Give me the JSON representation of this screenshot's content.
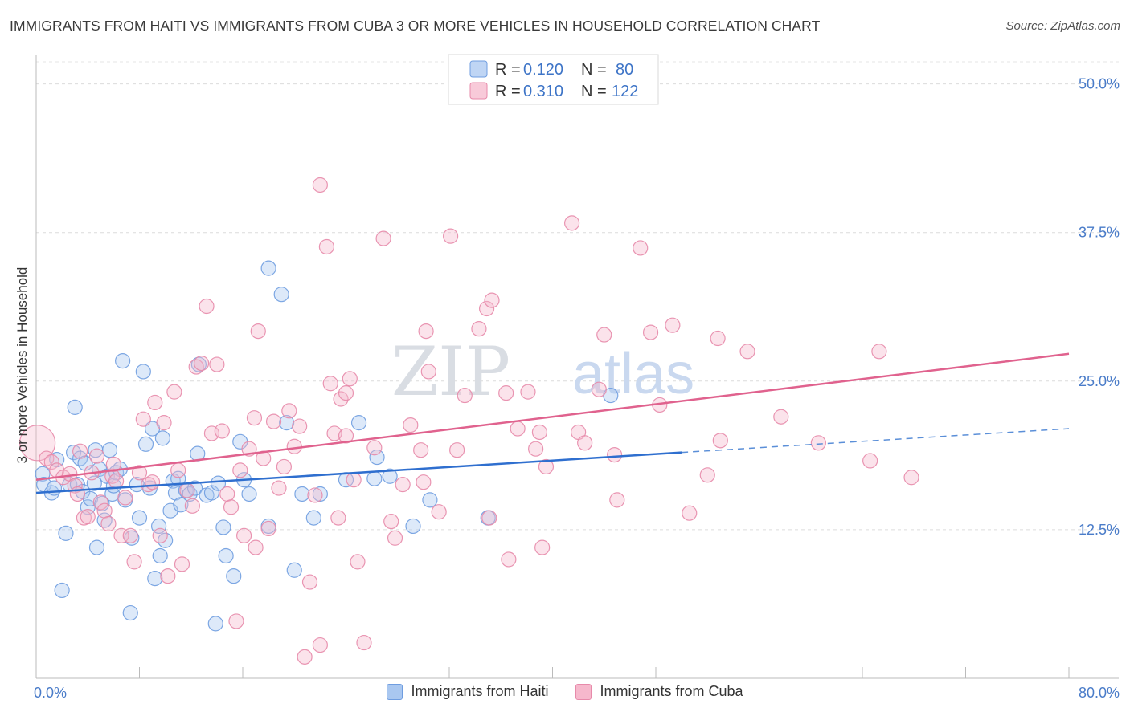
{
  "title": "IMMIGRANTS FROM HAITI VS IMMIGRANTS FROM CUBA 3 OR MORE VEHICLES IN HOUSEHOLD CORRELATION CHART",
  "source": "Source: ZipAtlas.com",
  "watermark": {
    "zip": "ZIP",
    "atlas": "atlas"
  },
  "chart_data": {
    "type": "scatter",
    "title": "IMMIGRANTS FROM HAITI VS IMMIGRANTS FROM CUBA 3 OR MORE VEHICLES IN HOUSEHOLD CORRELATION CHART",
    "xlabel": "",
    "ylabel": "3 or more Vehicles in Household",
    "xlim": [
      0,
      80
    ],
    "ylim": [
      0,
      52
    ],
    "x_tick_labels": [
      "0.0%",
      "80.0%"
    ],
    "y_ticks": [
      12.5,
      25.0,
      37.5,
      50.0
    ],
    "y_tick_labels": [
      "12.5%",
      "25.0%",
      "37.5%",
      "50.0%"
    ],
    "legend": [
      {
        "r_label": "R =",
        "r": "0.120",
        "n_label": "N =",
        "n": "80"
      },
      {
        "r_label": "R =",
        "r": "0.310",
        "n_label": "N =",
        "n": "122"
      }
    ],
    "series": [
      {
        "name": "Immigrants from Haiti",
        "color": "#6f9de0",
        "fill": "#a9c7f0",
        "trend": {
          "x0": 0,
          "y0": 15.6,
          "x1": 50,
          "y1": 19.0,
          "dash_x1": 80,
          "dash_y1": 21.0
        },
        "points": [
          [
            0.5,
            17.2
          ],
          [
            0.6,
            16.3
          ],
          [
            1.2,
            15.6
          ],
          [
            1.4,
            16.0
          ],
          [
            1.6,
            18.4
          ],
          [
            2.0,
            7.4
          ],
          [
            2.3,
            12.2
          ],
          [
            2.6,
            16.3
          ],
          [
            2.9,
            19.0
          ],
          [
            3.0,
            22.8
          ],
          [
            3.2,
            16.3
          ],
          [
            3.4,
            18.5
          ],
          [
            3.6,
            15.7
          ],
          [
            3.8,
            18.1
          ],
          [
            4.0,
            14.4
          ],
          [
            4.2,
            15.1
          ],
          [
            4.5,
            16.4
          ],
          [
            4.6,
            19.2
          ],
          [
            4.7,
            11.0
          ],
          [
            4.9,
            17.6
          ],
          [
            5.1,
            14.7
          ],
          [
            5.3,
            13.3
          ],
          [
            5.5,
            17.0
          ],
          [
            5.7,
            19.2
          ],
          [
            5.9,
            15.5
          ],
          [
            6.0,
            16.2
          ],
          [
            6.2,
            17.3
          ],
          [
            6.5,
            17.6
          ],
          [
            6.7,
            26.7
          ],
          [
            6.9,
            15.0
          ],
          [
            7.3,
            5.5
          ],
          [
            7.4,
            11.8
          ],
          [
            7.8,
            16.3
          ],
          [
            8.0,
            13.5
          ],
          [
            8.3,
            25.8
          ],
          [
            8.5,
            19.7
          ],
          [
            8.8,
            16.0
          ],
          [
            9.0,
            21.0
          ],
          [
            9.2,
            8.4
          ],
          [
            9.5,
            12.8
          ],
          [
            9.6,
            10.3
          ],
          [
            9.8,
            20.2
          ],
          [
            10.0,
            11.6
          ],
          [
            10.4,
            14.1
          ],
          [
            10.6,
            16.6
          ],
          [
            10.8,
            15.6
          ],
          [
            11.0,
            16.8
          ],
          [
            11.2,
            14.6
          ],
          [
            11.6,
            15.8
          ],
          [
            11.9,
            15.5
          ],
          [
            12.3,
            16.0
          ],
          [
            12.5,
            18.9
          ],
          [
            12.6,
            26.4
          ],
          [
            13.2,
            15.4
          ],
          [
            13.6,
            15.6
          ],
          [
            13.9,
            4.6
          ],
          [
            14.1,
            16.4
          ],
          [
            14.5,
            12.7
          ],
          [
            14.7,
            10.3
          ],
          [
            15.3,
            8.6
          ],
          [
            15.8,
            19.9
          ],
          [
            16.1,
            16.7
          ],
          [
            16.5,
            15.5
          ],
          [
            18.0,
            34.5
          ],
          [
            18.0,
            12.8
          ],
          [
            19.0,
            32.3
          ],
          [
            19.4,
            21.5
          ],
          [
            20.0,
            9.1
          ],
          [
            20.6,
            15.5
          ],
          [
            21.5,
            13.5
          ],
          [
            22.0,
            15.5
          ],
          [
            24.0,
            16.7
          ],
          [
            25.0,
            21.5
          ],
          [
            26.2,
            16.8
          ],
          [
            26.4,
            18.6
          ],
          [
            27.4,
            17.0
          ],
          [
            29.2,
            12.8
          ],
          [
            35.0,
            13.5
          ],
          [
            44.5,
            23.8
          ],
          [
            30.5,
            15.0
          ]
        ]
      },
      {
        "name": "Immigrants from Cuba",
        "color": "#e78aaa",
        "fill": "#f6b8cc",
        "trend": {
          "x0": 0,
          "y0": 16.7,
          "x1": 80,
          "y1": 27.3
        },
        "points": [
          [
            0.1,
            19.8
          ],
          [
            0.8,
            18.5
          ],
          [
            1.2,
            18.2
          ],
          [
            1.6,
            17.5
          ],
          [
            2.1,
            16.9
          ],
          [
            2.6,
            17.2
          ],
          [
            3.0,
            16.2
          ],
          [
            3.4,
            19.1
          ],
          [
            3.7,
            13.5
          ],
          [
            4.0,
            13.6
          ],
          [
            4.3,
            17.3
          ],
          [
            4.7,
            18.7
          ],
          [
            5.0,
            14.8
          ],
          [
            5.3,
            14.1
          ],
          [
            5.6,
            13.0
          ],
          [
            5.9,
            17.0
          ],
          [
            6.2,
            16.6
          ],
          [
            6.6,
            12.0
          ],
          [
            6.9,
            15.2
          ],
          [
            7.3,
            12.0
          ],
          [
            7.6,
            9.8
          ],
          [
            8.0,
            17.3
          ],
          [
            8.3,
            21.8
          ],
          [
            8.7,
            16.3
          ],
          [
            9.2,
            23.2
          ],
          [
            9.6,
            12.0
          ],
          [
            9.9,
            21.5
          ],
          [
            10.2,
            8.6
          ],
          [
            10.7,
            24.1
          ],
          [
            11.0,
            17.5
          ],
          [
            11.3,
            9.6
          ],
          [
            11.7,
            15.8
          ],
          [
            12.1,
            14.5
          ],
          [
            12.4,
            26.2
          ],
          [
            12.8,
            26.5
          ],
          [
            13.2,
            31.3
          ],
          [
            13.6,
            20.6
          ],
          [
            14.0,
            26.4
          ],
          [
            14.4,
            20.8
          ],
          [
            14.8,
            15.5
          ],
          [
            15.1,
            14.4
          ],
          [
            15.5,
            4.8
          ],
          [
            15.8,
            17.5
          ],
          [
            16.1,
            12.0
          ],
          [
            16.5,
            19.3
          ],
          [
            16.9,
            21.9
          ],
          [
            17.2,
            29.2
          ],
          [
            17.6,
            18.5
          ],
          [
            18.0,
            12.6
          ],
          [
            18.4,
            21.6
          ],
          [
            18.8,
            16.0
          ],
          [
            19.2,
            17.8
          ],
          [
            19.6,
            22.5
          ],
          [
            20.0,
            19.5
          ],
          [
            20.4,
            21.2
          ],
          [
            20.8,
            1.8
          ],
          [
            21.2,
            8.1
          ],
          [
            21.6,
            15.4
          ],
          [
            22.0,
            2.8
          ],
          [
            22.0,
            41.5
          ],
          [
            22.5,
            36.3
          ],
          [
            22.8,
            24.8
          ],
          [
            23.1,
            20.6
          ],
          [
            23.4,
            13.5
          ],
          [
            23.6,
            23.5
          ],
          [
            24.0,
            20.4
          ],
          [
            24.3,
            25.2
          ],
          [
            24.6,
            16.7
          ],
          [
            24.9,
            9.8
          ],
          [
            25.4,
            3.0
          ],
          [
            26.2,
            19.4
          ],
          [
            26.9,
            37.0
          ],
          [
            27.5,
            13.2
          ],
          [
            27.8,
            11.8
          ],
          [
            28.4,
            16.3
          ],
          [
            29.0,
            21.3
          ],
          [
            29.8,
            19.2
          ],
          [
            30.2,
            29.2
          ],
          [
            30.4,
            25.8
          ],
          [
            31.2,
            14.0
          ],
          [
            32.1,
            37.2
          ],
          [
            32.6,
            19.2
          ],
          [
            33.2,
            23.8
          ],
          [
            34.3,
            29.4
          ],
          [
            34.9,
            31.1
          ],
          [
            35.3,
            31.8
          ],
          [
            35.1,
            13.5
          ],
          [
            36.4,
            24.0
          ],
          [
            36.6,
            10.0
          ],
          [
            37.3,
            21.0
          ],
          [
            38.1,
            24.1
          ],
          [
            38.7,
            19.3
          ],
          [
            39.5,
            17.8
          ],
          [
            39.0,
            20.7
          ],
          [
            39.2,
            11.0
          ],
          [
            41.5,
            38.3
          ],
          [
            42.0,
            20.7
          ],
          [
            42.5,
            19.8
          ],
          [
            43.6,
            24.3
          ],
          [
            44.0,
            28.9
          ],
          [
            44.8,
            18.8
          ],
          [
            46.8,
            36.2
          ],
          [
            47.6,
            29.1
          ],
          [
            48.3,
            23.0
          ],
          [
            49.3,
            29.7
          ],
          [
            50.6,
            13.9
          ],
          [
            52.0,
            17.1
          ],
          [
            52.8,
            28.6
          ],
          [
            53.0,
            20.0
          ],
          [
            55.1,
            27.5
          ],
          [
            57.7,
            22.0
          ],
          [
            60.6,
            19.8
          ],
          [
            64.6,
            18.3
          ],
          [
            65.3,
            27.5
          ],
          [
            67.8,
            16.9
          ],
          [
            24.0,
            24.0
          ],
          [
            30.0,
            16.5
          ],
          [
            45.0,
            15.0
          ],
          [
            9.0,
            16.5
          ],
          [
            17.0,
            11.0
          ],
          [
            6.0,
            18.0
          ],
          [
            3.2,
            15.5
          ]
        ]
      }
    ]
  },
  "bottom_legend": [
    {
      "label": "Immigrants from Haiti"
    },
    {
      "label": "Immigrants from Cuba"
    }
  ]
}
